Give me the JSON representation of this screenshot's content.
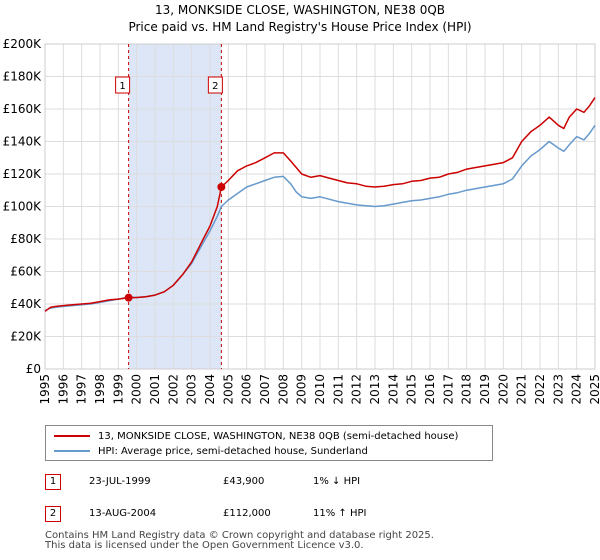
{
  "title": {
    "line1": "13, MONKSIDE CLOSE, WASHINGTON, NE38 0QB",
    "line2": "Price paid vs. HM Land Registry's House Price Index (HPI)"
  },
  "colors": {
    "property": "#cc0000",
    "hpi": "#6699cc",
    "shade": "#dde6f7",
    "grid": "#dddddd"
  },
  "chart_data": {
    "type": "line",
    "xlim": [
      1995,
      2025
    ],
    "ylim": [
      0,
      200000
    ],
    "y_ticks": [
      {
        "value": 0,
        "label": "£0"
      },
      {
        "value": 20000,
        "label": "£20K"
      },
      {
        "value": 40000,
        "label": "£40K"
      },
      {
        "value": 60000,
        "label": "£60K"
      },
      {
        "value": 80000,
        "label": "£80K"
      },
      {
        "value": 100000,
        "label": "£100K"
      },
      {
        "value": 120000,
        "label": "£120K"
      },
      {
        "value": 140000,
        "label": "£140K"
      },
      {
        "value": 160000,
        "label": "£160K"
      },
      {
        "value": 180000,
        "label": "£180K"
      },
      {
        "value": 200000,
        "label": "£200K"
      }
    ],
    "x_ticks": [
      "1995",
      "1996",
      "1997",
      "1998",
      "1999",
      "2000",
      "2001",
      "2002",
      "2003",
      "2004",
      "2005",
      "2006",
      "2007",
      "2008",
      "2009",
      "2010",
      "2011",
      "2012",
      "2013",
      "2014",
      "2015",
      "2016",
      "2017",
      "2018",
      "2019",
      "2020",
      "2021",
      "2022",
      "2023",
      "2024",
      "2025"
    ],
    "shaded_span": [
      1999.56,
      2004.62
    ],
    "series": [
      {
        "name": "13, MONKSIDE CLOSE, WASHINGTON, NE38 0QB (semi-detached house)",
        "key": "property",
        "points": [
          [
            1995.0,
            35500
          ],
          [
            1995.3,
            38000
          ],
          [
            1995.6,
            38500
          ],
          [
            1996.0,
            39000
          ],
          [
            1996.5,
            39500
          ],
          [
            1997.0,
            40000
          ],
          [
            1997.5,
            40500
          ],
          [
            1998.0,
            41500
          ],
          [
            1998.5,
            42500
          ],
          [
            1999.0,
            43000
          ],
          [
            1999.56,
            43900
          ],
          [
            2000.0,
            44000
          ],
          [
            2000.5,
            44500
          ],
          [
            2001.0,
            45500
          ],
          [
            2001.5,
            47500
          ],
          [
            2002.0,
            51500
          ],
          [
            2002.5,
            58000
          ],
          [
            2003.0,
            66000
          ],
          [
            2003.5,
            77000
          ],
          [
            2004.0,
            88000
          ],
          [
            2004.4,
            100000
          ],
          [
            2004.62,
            112000
          ],
          [
            2005.0,
            116000
          ],
          [
            2005.5,
            122000
          ],
          [
            2006.0,
            125000
          ],
          [
            2006.5,
            127000
          ],
          [
            2007.0,
            130000
          ],
          [
            2007.5,
            133000
          ],
          [
            2008.0,
            133000
          ],
          [
            2008.4,
            128000
          ],
          [
            2008.7,
            124000
          ],
          [
            2009.0,
            120000
          ],
          [
            2009.5,
            118000
          ],
          [
            2010.0,
            119000
          ],
          [
            2010.5,
            117500
          ],
          [
            2011.0,
            116000
          ],
          [
            2011.5,
            114500
          ],
          [
            2012.0,
            114000
          ],
          [
            2012.5,
            112500
          ],
          [
            2013.0,
            112000
          ],
          [
            2013.5,
            112500
          ],
          [
            2014.0,
            113500
          ],
          [
            2014.5,
            114000
          ],
          [
            2015.0,
            115500
          ],
          [
            2015.5,
            116000
          ],
          [
            2016.0,
            117500
          ],
          [
            2016.5,
            118000
          ],
          [
            2017.0,
            120000
          ],
          [
            2017.5,
            121000
          ],
          [
            2018.0,
            123000
          ],
          [
            2018.5,
            124000
          ],
          [
            2019.0,
            125000
          ],
          [
            2019.5,
            126000
          ],
          [
            2020.0,
            127000
          ],
          [
            2020.5,
            130000
          ],
          [
            2021.0,
            140000
          ],
          [
            2021.5,
            146000
          ],
          [
            2022.0,
            150000
          ],
          [
            2022.5,
            155000
          ],
          [
            2023.0,
            150000
          ],
          [
            2023.3,
            148000
          ],
          [
            2023.6,
            155000
          ],
          [
            2024.0,
            160000
          ],
          [
            2024.4,
            158000
          ],
          [
            2024.7,
            162000
          ],
          [
            2025.0,
            167000
          ]
        ]
      },
      {
        "name": "HPI: Average price, semi-detached house, Sunderland",
        "key": "hpi",
        "points": [
          [
            1995.0,
            36000
          ],
          [
            1995.3,
            37500
          ],
          [
            1995.6,
            38000
          ],
          [
            1996.0,
            38500
          ],
          [
            1996.5,
            39000
          ],
          [
            1997.0,
            39500
          ],
          [
            1997.5,
            40000
          ],
          [
            1998.0,
            41000
          ],
          [
            1998.5,
            42000
          ],
          [
            1999.0,
            43000
          ],
          [
            1999.56,
            44300
          ],
          [
            2000.0,
            44000
          ],
          [
            2000.5,
            44500
          ],
          [
            2001.0,
            45500
          ],
          [
            2001.5,
            47500
          ],
          [
            2002.0,
            51500
          ],
          [
            2002.5,
            58000
          ],
          [
            2003.0,
            65000
          ],
          [
            2003.5,
            75000
          ],
          [
            2004.0,
            85000
          ],
          [
            2004.4,
            94000
          ],
          [
            2004.62,
            100000
          ],
          [
            2005.0,
            104000
          ],
          [
            2005.5,
            108000
          ],
          [
            2006.0,
            112000
          ],
          [
            2006.5,
            114000
          ],
          [
            2007.0,
            116000
          ],
          [
            2007.5,
            118000
          ],
          [
            2008.0,
            118500
          ],
          [
            2008.4,
            114000
          ],
          [
            2008.7,
            109000
          ],
          [
            2009.0,
            106000
          ],
          [
            2009.5,
            105000
          ],
          [
            2010.0,
            106000
          ],
          [
            2010.5,
            104500
          ],
          [
            2011.0,
            103000
          ],
          [
            2011.5,
            102000
          ],
          [
            2012.0,
            101000
          ],
          [
            2012.5,
            100500
          ],
          [
            2013.0,
            100000
          ],
          [
            2013.5,
            100500
          ],
          [
            2014.0,
            101500
          ],
          [
            2014.5,
            102500
          ],
          [
            2015.0,
            103500
          ],
          [
            2015.5,
            104000
          ],
          [
            2016.0,
            105000
          ],
          [
            2016.5,
            106000
          ],
          [
            2017.0,
            107500
          ],
          [
            2017.5,
            108500
          ],
          [
            2018.0,
            110000
          ],
          [
            2018.5,
            111000
          ],
          [
            2019.0,
            112000
          ],
          [
            2019.5,
            113000
          ],
          [
            2020.0,
            114000
          ],
          [
            2020.5,
            117000
          ],
          [
            2021.0,
            125000
          ],
          [
            2021.5,
            131000
          ],
          [
            2022.0,
            135000
          ],
          [
            2022.5,
            140000
          ],
          [
            2023.0,
            136000
          ],
          [
            2023.3,
            134000
          ],
          [
            2023.6,
            138000
          ],
          [
            2024.0,
            143000
          ],
          [
            2024.4,
            141000
          ],
          [
            2024.7,
            145000
          ],
          [
            2025.0,
            150000
          ]
        ]
      }
    ],
    "sales": [
      {
        "id": "1",
        "x": 1999.56,
        "price": 43900
      },
      {
        "id": "2",
        "x": 2004.62,
        "price": 112000
      }
    ]
  },
  "legend": {
    "property": "13, MONKSIDE CLOSE, WASHINGTON, NE38 0QB (semi-detached house)",
    "hpi": "HPI: Average price, semi-detached house, Sunderland"
  },
  "transactions": [
    {
      "id": "1",
      "date": "23-JUL-1999",
      "price": "£43,900",
      "hpi": "1% ↓ HPI"
    },
    {
      "id": "2",
      "date": "13-AUG-2004",
      "price": "£112,000",
      "hpi": "11% ↑ HPI"
    }
  ],
  "footer": {
    "line1": "Contains HM Land Registry data © Crown copyright and database right 2025.",
    "line2": "This data is licensed under the Open Government Licence v3.0."
  }
}
